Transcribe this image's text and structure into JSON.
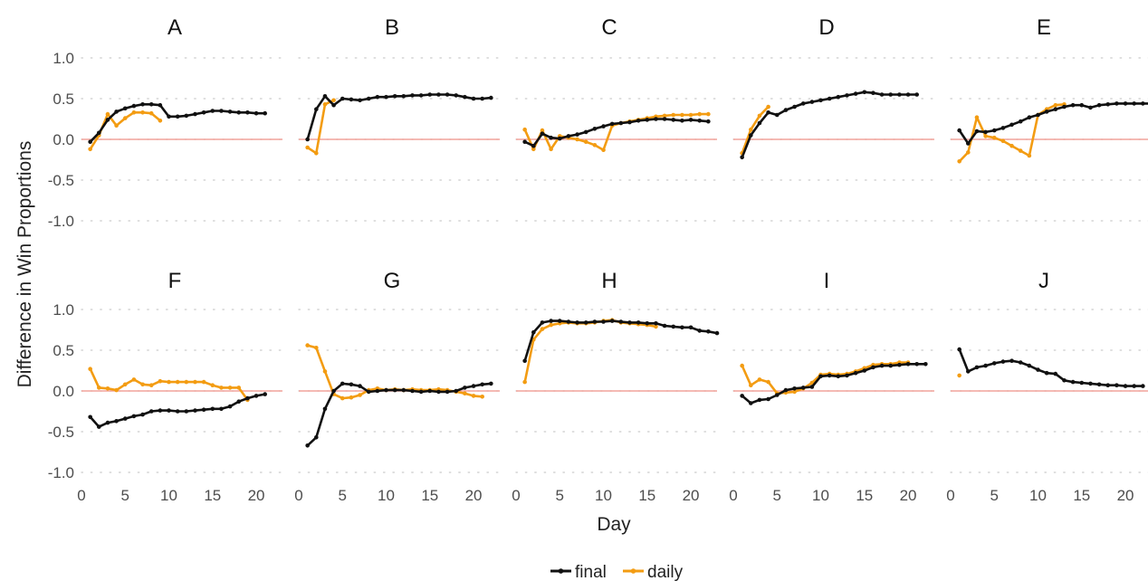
{
  "colors": {
    "final": "#111111",
    "daily": "#F39C12",
    "zero_line": "#F2A39B",
    "grid": "#d4d4d4"
  },
  "axis": {
    "xlabel": "Day",
    "ylabel": "Difference in Win Proportions",
    "ylim": [
      -1.0,
      1.0
    ],
    "xlim": [
      0,
      23
    ],
    "yticks": [
      1.0,
      0.5,
      0.0,
      -0.5,
      -1.0
    ],
    "ytick_labels": [
      "1.0",
      "0.5",
      "0.0",
      "-0.5",
      "-1.0"
    ],
    "xticks": [
      0,
      5,
      10,
      15,
      20
    ],
    "xtick_labels": [
      "0",
      "5",
      "10",
      "15",
      "20"
    ]
  },
  "legend": {
    "placement": "bottom",
    "entries": [
      {
        "key": "final",
        "label": "final"
      },
      {
        "key": "daily",
        "label": "daily"
      }
    ]
  },
  "chart_data": [
    {
      "type": "line",
      "title": "A",
      "series": [
        {
          "name": "final",
          "x": [
            1,
            2,
            3,
            4,
            5,
            6,
            7,
            8,
            9,
            10,
            11,
            12,
            13,
            14,
            15,
            16,
            17,
            18,
            19,
            20,
            21
          ],
          "y": [
            -0.03,
            0.08,
            0.24,
            0.34,
            0.38,
            0.41,
            0.43,
            0.43,
            0.42,
            0.28,
            0.28,
            0.29,
            0.31,
            0.33,
            0.35,
            0.35,
            0.34,
            0.33,
            0.33,
            0.32,
            0.32
          ]
        },
        {
          "name": "daily",
          "x": [
            1,
            2,
            3,
            4,
            5,
            6,
            7,
            8,
            9
          ],
          "y": [
            -0.12,
            0.05,
            0.31,
            0.17,
            0.26,
            0.33,
            0.33,
            0.32,
            0.23
          ]
        }
      ]
    },
    {
      "type": "line",
      "title": "B",
      "series": [
        {
          "name": "final",
          "x": [
            1,
            2,
            3,
            4,
            5,
            6,
            7,
            8,
            9,
            10,
            11,
            12,
            13,
            14,
            15,
            16,
            17,
            18,
            19,
            20,
            21,
            22
          ],
          "y": [
            0.0,
            0.37,
            0.53,
            0.42,
            0.5,
            0.49,
            0.48,
            0.5,
            0.52,
            0.52,
            0.53,
            0.53,
            0.54,
            0.54,
            0.55,
            0.55,
            0.55,
            0.54,
            0.52,
            0.5,
            0.5,
            0.51
          ]
        },
        {
          "name": "daily",
          "x": [
            1,
            2,
            3,
            4
          ],
          "y": [
            -0.1,
            -0.17,
            0.43,
            0.48
          ]
        }
      ]
    },
    {
      "type": "line",
      "title": "C",
      "series": [
        {
          "name": "final",
          "x": [
            1,
            2,
            3,
            4,
            5,
            6,
            7,
            8,
            9,
            10,
            11,
            12,
            13,
            14,
            15,
            16,
            17,
            18,
            19,
            20,
            21,
            22
          ],
          "y": [
            -0.03,
            -0.08,
            0.07,
            0.02,
            0.01,
            0.04,
            0.06,
            0.09,
            0.13,
            0.16,
            0.19,
            0.2,
            0.21,
            0.23,
            0.24,
            0.25,
            0.25,
            0.24,
            0.23,
            0.24,
            0.23,
            0.22
          ]
        },
        {
          "name": "daily",
          "x": [
            1,
            2,
            3,
            4,
            5,
            6,
            7,
            8,
            9,
            10,
            11,
            12,
            13,
            14,
            15,
            16,
            17,
            18,
            19,
            20,
            21,
            22
          ],
          "y": [
            0.12,
            -0.12,
            0.11,
            -0.12,
            0.04,
            0.02,
            0.0,
            -0.03,
            -0.07,
            -0.13,
            0.17,
            0.2,
            0.22,
            0.24,
            0.26,
            0.28,
            0.29,
            0.3,
            0.3,
            0.3,
            0.31,
            0.31
          ]
        }
      ]
    },
    {
      "type": "line",
      "title": "D",
      "series": [
        {
          "name": "final",
          "x": [
            1,
            2,
            3,
            4,
            5,
            6,
            7,
            8,
            9,
            10,
            11,
            12,
            13,
            14,
            15,
            16,
            17,
            18,
            19,
            20,
            21
          ],
          "y": [
            -0.22,
            0.05,
            0.2,
            0.33,
            0.3,
            0.36,
            0.4,
            0.44,
            0.46,
            0.48,
            0.5,
            0.52,
            0.54,
            0.56,
            0.58,
            0.57,
            0.55,
            0.55,
            0.55,
            0.55,
            0.55
          ]
        },
        {
          "name": "daily",
          "x": [
            1,
            2,
            3,
            4
          ],
          "y": [
            -0.17,
            0.12,
            0.29,
            0.4
          ]
        }
      ]
    },
    {
      "type": "line",
      "title": "E",
      "series": [
        {
          "name": "final",
          "x": [
            1,
            2,
            3,
            4,
            5,
            6,
            7,
            8,
            9,
            10,
            11,
            12,
            13,
            14,
            15,
            16,
            17,
            18,
            19,
            20,
            21,
            22,
            23
          ],
          "y": [
            0.11,
            -0.05,
            0.1,
            0.09,
            0.11,
            0.14,
            0.18,
            0.22,
            0.27,
            0.3,
            0.34,
            0.37,
            0.4,
            0.42,
            0.42,
            0.39,
            0.42,
            0.43,
            0.44,
            0.44,
            0.44,
            0.44,
            0.44
          ]
        },
        {
          "name": "daily",
          "x": [
            1,
            2,
            3,
            4,
            5,
            6,
            7,
            8,
            9,
            10,
            11,
            12,
            13
          ],
          "y": [
            -0.27,
            -0.16,
            0.27,
            0.04,
            0.02,
            -0.02,
            -0.08,
            -0.14,
            -0.2,
            0.3,
            0.37,
            0.42,
            0.43
          ]
        }
      ]
    },
    {
      "type": "line",
      "title": "F",
      "series": [
        {
          "name": "final",
          "x": [
            1,
            2,
            3,
            4,
            5,
            6,
            7,
            8,
            9,
            10,
            11,
            12,
            13,
            14,
            15,
            16,
            17,
            18,
            19,
            20,
            21
          ],
          "y": [
            -0.32,
            -0.44,
            -0.39,
            -0.37,
            -0.34,
            -0.31,
            -0.29,
            -0.25,
            -0.24,
            -0.24,
            -0.25,
            -0.25,
            -0.24,
            -0.23,
            -0.22,
            -0.22,
            -0.19,
            -0.13,
            -0.09,
            -0.06,
            -0.04
          ]
        },
        {
          "name": "daily",
          "x": [
            1,
            2,
            3,
            4,
            5,
            6,
            7,
            8,
            9,
            10,
            11,
            12,
            13,
            14,
            15,
            16,
            17,
            18,
            19
          ],
          "y": [
            0.27,
            0.04,
            0.03,
            0.01,
            0.08,
            0.14,
            0.08,
            0.07,
            0.12,
            0.11,
            0.11,
            0.11,
            0.11,
            0.11,
            0.07,
            0.04,
            0.04,
            0.04,
            -0.11
          ]
        }
      ]
    },
    {
      "type": "line",
      "title": "G",
      "series": [
        {
          "name": "final",
          "x": [
            1,
            2,
            3,
            4,
            5,
            6,
            7,
            8,
            9,
            10,
            11,
            12,
            13,
            14,
            15,
            16,
            17,
            18,
            19,
            20,
            21,
            22
          ],
          "y": [
            -0.67,
            -0.57,
            -0.22,
            0.0,
            0.09,
            0.08,
            0.06,
            -0.01,
            0.0,
            0.01,
            0.01,
            0.01,
            0.0,
            -0.01,
            0.0,
            -0.01,
            -0.01,
            0.0,
            0.04,
            0.06,
            0.08,
            0.09
          ]
        },
        {
          "name": "daily",
          "x": [
            1,
            2,
            3,
            4,
            5,
            6,
            7,
            8,
            9,
            10,
            11,
            12,
            13,
            14,
            15,
            16,
            17,
            18,
            19,
            20,
            21
          ],
          "y": [
            0.56,
            0.53,
            0.24,
            -0.04,
            -0.09,
            -0.08,
            -0.05,
            0.01,
            0.03,
            0.01,
            0.02,
            0.01,
            0.02,
            0.01,
            0.01,
            0.02,
            0.01,
            -0.01,
            -0.03,
            -0.06,
            -0.07
          ]
        }
      ]
    },
    {
      "type": "line",
      "title": "H",
      "series": [
        {
          "name": "final",
          "x": [
            1,
            2,
            3,
            4,
            5,
            6,
            7,
            8,
            9,
            10,
            11,
            12,
            13,
            14,
            15,
            16,
            17,
            18,
            19,
            20,
            21,
            22,
            23
          ],
          "y": [
            0.37,
            0.72,
            0.84,
            0.86,
            0.86,
            0.85,
            0.84,
            0.84,
            0.85,
            0.85,
            0.86,
            0.85,
            0.84,
            0.84,
            0.83,
            0.83,
            0.8,
            0.79,
            0.78,
            0.78,
            0.74,
            0.73,
            0.71
          ]
        },
        {
          "name": "daily",
          "x": [
            1,
            2,
            3,
            4,
            5,
            6,
            7,
            8,
            9,
            10,
            11,
            12,
            13,
            14,
            15,
            16
          ],
          "y": [
            0.11,
            0.63,
            0.76,
            0.81,
            0.83,
            0.84,
            0.83,
            0.83,
            0.84,
            0.86,
            0.87,
            0.84,
            0.83,
            0.82,
            0.81,
            0.79
          ]
        }
      ]
    },
    {
      "type": "line",
      "title": "I",
      "series": [
        {
          "name": "final",
          "x": [
            1,
            2,
            3,
            4,
            5,
            6,
            7,
            8,
            9,
            10,
            11,
            12,
            13,
            14,
            15,
            16,
            17,
            18,
            19,
            20,
            21,
            22
          ],
          "y": [
            -0.06,
            -0.15,
            -0.11,
            -0.1,
            -0.05,
            0.01,
            0.03,
            0.04,
            0.05,
            0.18,
            0.19,
            0.18,
            0.19,
            0.22,
            0.25,
            0.29,
            0.31,
            0.31,
            0.32,
            0.33,
            0.33,
            0.33
          ]
        },
        {
          "name": "daily",
          "x": [
            1,
            2,
            3,
            4,
            5,
            6,
            7,
            8,
            9,
            10,
            11,
            12,
            13,
            14,
            15,
            16,
            17,
            18,
            19,
            20
          ],
          "y": [
            0.31,
            0.07,
            0.14,
            0.11,
            -0.03,
            -0.02,
            -0.01,
            0.03,
            0.1,
            0.2,
            0.21,
            0.2,
            0.21,
            0.24,
            0.28,
            0.32,
            0.33,
            0.33,
            0.35,
            0.35
          ]
        }
      ]
    },
    {
      "type": "line",
      "title": "J",
      "series": [
        {
          "name": "final",
          "x": [
            1,
            2,
            3,
            4,
            5,
            6,
            7,
            8,
            9,
            10,
            11,
            12,
            13,
            14,
            15,
            16,
            17,
            18,
            19,
            20,
            21,
            22
          ],
          "y": [
            0.51,
            0.24,
            0.29,
            0.31,
            0.34,
            0.36,
            0.37,
            0.35,
            0.31,
            0.26,
            0.22,
            0.21,
            0.13,
            0.11,
            0.1,
            0.09,
            0.08,
            0.07,
            0.07,
            0.06,
            0.06,
            0.06
          ]
        },
        {
          "name": "daily",
          "x": [
            1
          ],
          "y": [
            0.19
          ]
        }
      ]
    }
  ]
}
